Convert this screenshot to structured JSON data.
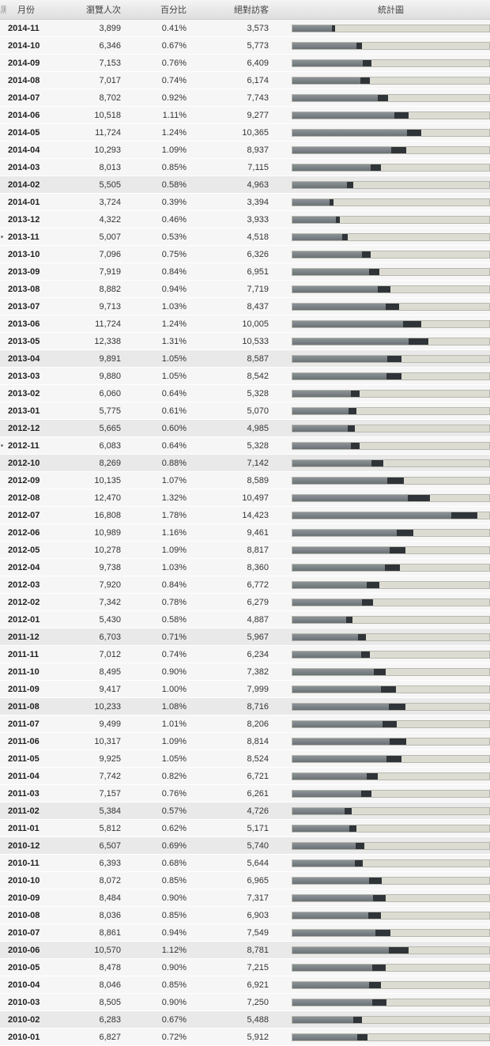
{
  "header": {
    "edge": "黑",
    "month": "月份",
    "views": "瀏覽人次",
    "percent": "百分比",
    "unique": "絕對訪客",
    "chart": "統計圖"
  },
  "colors": {
    "row_bg": "#f6f6f6",
    "row_highlight_bg": "#e9e9e9",
    "bar_track": "#dcdcd2",
    "bar_total": "#2f3438",
    "bar_unique": "#7b8286"
  },
  "bar_max_views": 18000,
  "rows": [
    {
      "month": "2014-11",
      "views": "3,899",
      "percent": "0.41%",
      "unique": "3,573",
      "v": 3899,
      "u": 3573
    },
    {
      "month": "2014-10",
      "views": "6,346",
      "percent": "0.67%",
      "unique": "5,773",
      "v": 6346,
      "u": 5773
    },
    {
      "month": "2014-09",
      "views": "7,153",
      "percent": "0.76%",
      "unique": "6,409",
      "v": 7153,
      "u": 6409
    },
    {
      "month": "2014-08",
      "views": "7,017",
      "percent": "0.74%",
      "unique": "6,174",
      "v": 7017,
      "u": 6174
    },
    {
      "month": "2014-07",
      "views": "8,702",
      "percent": "0.92%",
      "unique": "7,743",
      "v": 8702,
      "u": 7743
    },
    {
      "month": "2014-06",
      "views": "10,518",
      "percent": "1.11%",
      "unique": "9,277",
      "v": 10518,
      "u": 9277
    },
    {
      "month": "2014-05",
      "views": "11,724",
      "percent": "1.24%",
      "unique": "10,365",
      "v": 11724,
      "u": 10365
    },
    {
      "month": "2014-04",
      "views": "10,293",
      "percent": "1.09%",
      "unique": "8,937",
      "v": 10293,
      "u": 8937
    },
    {
      "month": "2014-03",
      "views": "8,013",
      "percent": "0.85%",
      "unique": "7,115",
      "v": 8013,
      "u": 7115
    },
    {
      "month": "2014-02",
      "views": "5,505",
      "percent": "0.58%",
      "unique": "4,963",
      "v": 5505,
      "u": 4963,
      "hl": true
    },
    {
      "month": "2014-01",
      "views": "3,724",
      "percent": "0.39%",
      "unique": "3,394",
      "v": 3724,
      "u": 3394
    },
    {
      "month": "2013-12",
      "views": "4,322",
      "percent": "0.46%",
      "unique": "3,933",
      "v": 4322,
      "u": 3933
    },
    {
      "month": "2013-11",
      "views": "5,007",
      "percent": "0.53%",
      "unique": "4,518",
      "v": 5007,
      "u": 4518,
      "mark": true
    },
    {
      "month": "2013-10",
      "views": "7,096",
      "percent": "0.75%",
      "unique": "6,326",
      "v": 7096,
      "u": 6326
    },
    {
      "month": "2013-09",
      "views": "7,919",
      "percent": "0.84%",
      "unique": "6,951",
      "v": 7919,
      "u": 6951
    },
    {
      "month": "2013-08",
      "views": "8,882",
      "percent": "0.94%",
      "unique": "7,719",
      "v": 8882,
      "u": 7719
    },
    {
      "month": "2013-07",
      "views": "9,713",
      "percent": "1.03%",
      "unique": "8,437",
      "v": 9713,
      "u": 8437
    },
    {
      "month": "2013-06",
      "views": "11,724",
      "percent": "1.24%",
      "unique": "10,005",
      "v": 11724,
      "u": 10005
    },
    {
      "month": "2013-05",
      "views": "12,338",
      "percent": "1.31%",
      "unique": "10,533",
      "v": 12338,
      "u": 10533
    },
    {
      "month": "2013-04",
      "views": "9,891",
      "percent": "1.05%",
      "unique": "8,587",
      "v": 9891,
      "u": 8587,
      "hl": true
    },
    {
      "month": "2013-03",
      "views": "9,880",
      "percent": "1.05%",
      "unique": "8,542",
      "v": 9880,
      "u": 8542
    },
    {
      "month": "2013-02",
      "views": "6,060",
      "percent": "0.64%",
      "unique": "5,328",
      "v": 6060,
      "u": 5328
    },
    {
      "month": "2013-01",
      "views": "5,775",
      "percent": "0.61%",
      "unique": "5,070",
      "v": 5775,
      "u": 5070
    },
    {
      "month": "2012-12",
      "views": "5,665",
      "percent": "0.60%",
      "unique": "4,985",
      "v": 5665,
      "u": 4985,
      "hl": true
    },
    {
      "month": "2012-11",
      "views": "6,083",
      "percent": "0.64%",
      "unique": "5,328",
      "v": 6083,
      "u": 5328,
      "mark": true
    },
    {
      "month": "2012-10",
      "views": "8,269",
      "percent": "0.88%",
      "unique": "7,142",
      "v": 8269,
      "u": 7142,
      "hl": true
    },
    {
      "month": "2012-09",
      "views": "10,135",
      "percent": "1.07%",
      "unique": "8,589",
      "v": 10135,
      "u": 8589
    },
    {
      "month": "2012-08",
      "views": "12,470",
      "percent": "1.32%",
      "unique": "10,497",
      "v": 12470,
      "u": 10497
    },
    {
      "month": "2012-07",
      "views": "16,808",
      "percent": "1.78%",
      "unique": "14,423",
      "v": 16808,
      "u": 14423
    },
    {
      "month": "2012-06",
      "views": "10,989",
      "percent": "1.16%",
      "unique": "9,461",
      "v": 10989,
      "u": 9461
    },
    {
      "month": "2012-05",
      "views": "10,278",
      "percent": "1.09%",
      "unique": "8,817",
      "v": 10278,
      "u": 8817
    },
    {
      "month": "2012-04",
      "views": "9,738",
      "percent": "1.03%",
      "unique": "8,360",
      "v": 9738,
      "u": 8360
    },
    {
      "month": "2012-03",
      "views": "7,920",
      "percent": "0.84%",
      "unique": "6,772",
      "v": 7920,
      "u": 6772
    },
    {
      "month": "2012-02",
      "views": "7,342",
      "percent": "0.78%",
      "unique": "6,279",
      "v": 7342,
      "u": 6279
    },
    {
      "month": "2012-01",
      "views": "5,430",
      "percent": "0.58%",
      "unique": "4,887",
      "v": 5430,
      "u": 4887
    },
    {
      "month": "2011-12",
      "views": "6,703",
      "percent": "0.71%",
      "unique": "5,967",
      "v": 6703,
      "u": 5967,
      "hl": true
    },
    {
      "month": "2011-11",
      "views": "7,012",
      "percent": "0.74%",
      "unique": "6,234",
      "v": 7012,
      "u": 6234
    },
    {
      "month": "2011-10",
      "views": "8,495",
      "percent": "0.90%",
      "unique": "7,382",
      "v": 8495,
      "u": 7382
    },
    {
      "month": "2011-09",
      "views": "9,417",
      "percent": "1.00%",
      "unique": "7,999",
      "v": 9417,
      "u": 7999
    },
    {
      "month": "2011-08",
      "views": "10,233",
      "percent": "1.08%",
      "unique": "8,716",
      "v": 10233,
      "u": 8716,
      "hl": true
    },
    {
      "month": "2011-07",
      "views": "9,499",
      "percent": "1.01%",
      "unique": "8,206",
      "v": 9499,
      "u": 8206
    },
    {
      "month": "2011-06",
      "views": "10,317",
      "percent": "1.09%",
      "unique": "8,814",
      "v": 10317,
      "u": 8814
    },
    {
      "month": "2011-05",
      "views": "9,925",
      "percent": "1.05%",
      "unique": "8,524",
      "v": 9925,
      "u": 8524
    },
    {
      "month": "2011-04",
      "views": "7,742",
      "percent": "0.82%",
      "unique": "6,721",
      "v": 7742,
      "u": 6721
    },
    {
      "month": "2011-03",
      "views": "7,157",
      "percent": "0.76%",
      "unique": "6,261",
      "v": 7157,
      "u": 6261
    },
    {
      "month": "2011-02",
      "views": "5,384",
      "percent": "0.57%",
      "unique": "4,726",
      "v": 5384,
      "u": 4726,
      "hl": true
    },
    {
      "month": "2011-01",
      "views": "5,812",
      "percent": "0.62%",
      "unique": "5,171",
      "v": 5812,
      "u": 5171
    },
    {
      "month": "2010-12",
      "views": "6,507",
      "percent": "0.69%",
      "unique": "5,740",
      "v": 6507,
      "u": 5740,
      "hl": true
    },
    {
      "month": "2010-11",
      "views": "6,393",
      "percent": "0.68%",
      "unique": "5,644",
      "v": 6393,
      "u": 5644
    },
    {
      "month": "2010-10",
      "views": "8,072",
      "percent": "0.85%",
      "unique": "6,965",
      "v": 8072,
      "u": 6965
    },
    {
      "month": "2010-09",
      "views": "8,484",
      "percent": "0.90%",
      "unique": "7,317",
      "v": 8484,
      "u": 7317
    },
    {
      "month": "2010-08",
      "views": "8,036",
      "percent": "0.85%",
      "unique": "6,903",
      "v": 8036,
      "u": 6903
    },
    {
      "month": "2010-07",
      "views": "8,861",
      "percent": "0.94%",
      "unique": "7,549",
      "v": 8861,
      "u": 7549
    },
    {
      "month": "2010-06",
      "views": "10,570",
      "percent": "1.12%",
      "unique": "8,781",
      "v": 10570,
      "u": 8781,
      "hl": true
    },
    {
      "month": "2010-05",
      "views": "8,478",
      "percent": "0.90%",
      "unique": "7,215",
      "v": 8478,
      "u": 7215
    },
    {
      "month": "2010-04",
      "views": "8,046",
      "percent": "0.85%",
      "unique": "6,921",
      "v": 8046,
      "u": 6921
    },
    {
      "month": "2010-03",
      "views": "8,505",
      "percent": "0.90%",
      "unique": "7,250",
      "v": 8505,
      "u": 7250
    },
    {
      "month": "2010-02",
      "views": "6,283",
      "percent": "0.67%",
      "unique": "5,488",
      "v": 6283,
      "u": 5488,
      "hl": true
    },
    {
      "month": "2010-01",
      "views": "6,827",
      "percent": "0.72%",
      "unique": "5,912",
      "v": 6827,
      "u": 5912
    }
  ]
}
